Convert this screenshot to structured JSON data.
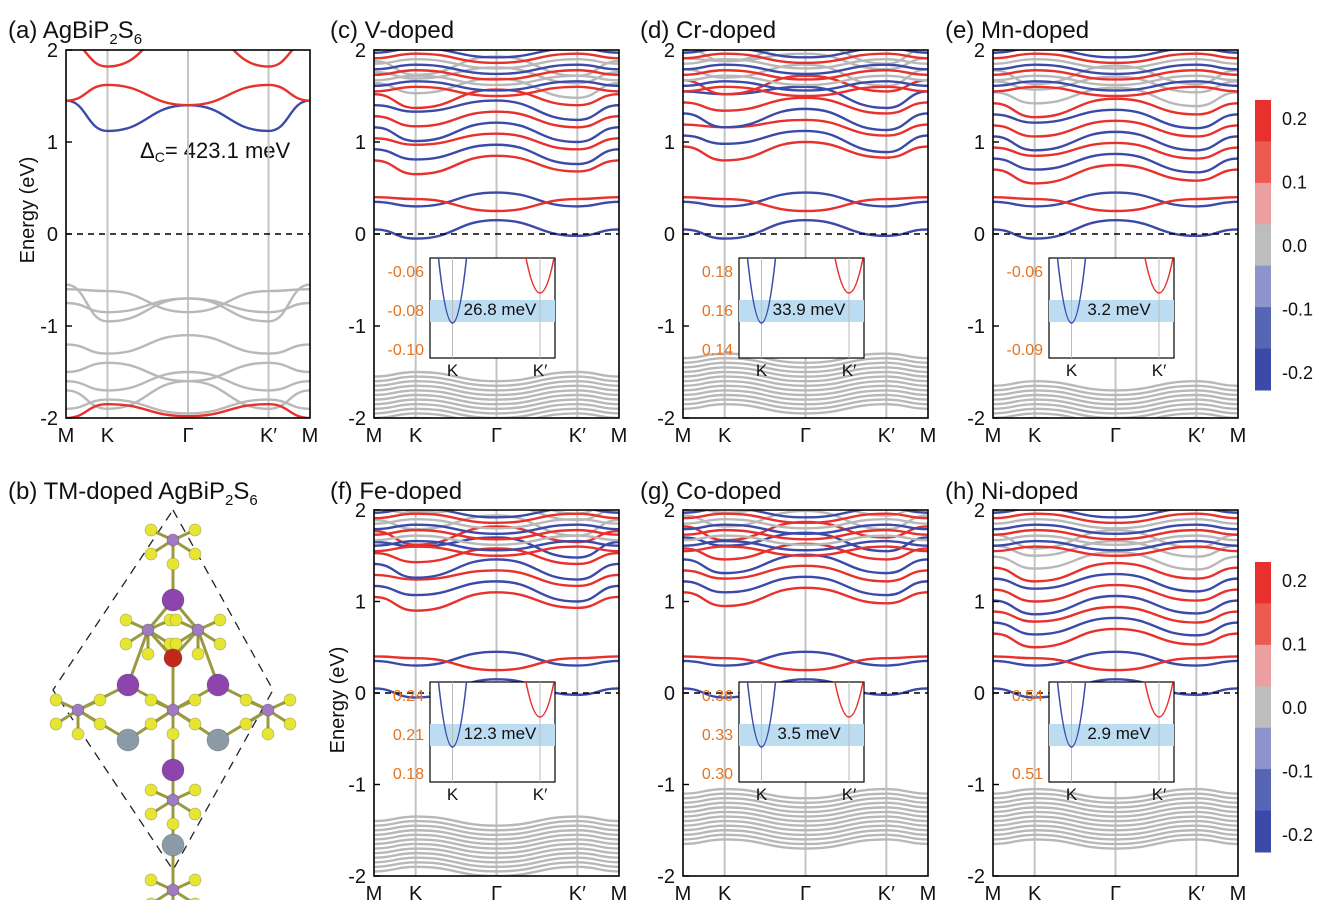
{
  "colors": {
    "up": "#e8302c",
    "down": "#3b4aa8",
    "neutral": "#b8b8b8",
    "valley_band": "#bcdcf2",
    "inset_tick": "#e5731f",
    "atom_S": "#e6e632",
    "atom_P": "#a07ac0",
    "atom_Bi": "#8e44ad",
    "atom_Ag": "#8a9aa6",
    "atom_TM": "#c0281c"
  },
  "common": {
    "x_ticks": [
      "M",
      "K",
      "Γ",
      "K′",
      "M"
    ],
    "y_ticks": [
      "-2",
      "-1",
      "0",
      "1",
      "2"
    ],
    "y_range": [
      -2,
      2
    ],
    "ylabel": "Energy (eV)"
  },
  "colorbar": {
    "ticks": [
      "0.2",
      "0.1",
      "0.0",
      "-0.1",
      "-0.2"
    ],
    "segments": [
      "#e8302c",
      "#ec5a52",
      "#eba0a0",
      "#bdbdbd",
      "#8e93cc",
      "#5665b4",
      "#3b4aa8"
    ]
  },
  "panels": [
    {
      "id": "a",
      "label": "(a)",
      "title": "AgBiP",
      "sub1": "2",
      "mid": "S",
      "sub2": "6",
      "annotation_delta": "Δ",
      "annotation_sub": "C",
      "annotation_value": "= 423.1 meV"
    },
    {
      "id": "b",
      "label": "(b)",
      "title": "TM-doped AgBiP",
      "sub1": "2",
      "mid": "S",
      "sub2": "6"
    },
    {
      "id": "c",
      "label": "(c)",
      "title": "V-doped",
      "inset": {
        "y_ticks": [
          "-0.06",
          "-0.08",
          "-0.10"
        ],
        "k_labels": [
          "K",
          "K′"
        ],
        "splitting": "26.8 meV"
      }
    },
    {
      "id": "d",
      "label": "(d)",
      "title": "Cr-doped",
      "inset": {
        "y_ticks": [
          "0.18",
          "0.16",
          "0.14"
        ],
        "k_labels": [
          "K",
          "K′"
        ],
        "splitting": "33.9 meV"
      }
    },
    {
      "id": "e",
      "label": "(e)",
      "title": "Mn-doped",
      "inset": {
        "y_ticks": [
          "-0.06",
          "-0.09"
        ],
        "k_labels": [
          "K",
          "K′"
        ],
        "splitting": "3.2 meV"
      }
    },
    {
      "id": "f",
      "label": "(f)",
      "title": "Fe-doped",
      "inset": {
        "y_ticks": [
          "0.24",
          "0.21",
          "0.18"
        ],
        "k_labels": [
          "K",
          "K′"
        ],
        "splitting": "12.3 meV"
      }
    },
    {
      "id": "g",
      "label": "(g)",
      "title": "Co-doped",
      "inset": {
        "y_ticks": [
          "0.36",
          "0.33",
          "0.30"
        ],
        "k_labels": [
          "K",
          "K′"
        ],
        "splitting": "3.5 meV"
      }
    },
    {
      "id": "h",
      "label": "(h)",
      "title": "Ni-doped",
      "inset": {
        "y_ticks": [
          "0.54",
          "0.51"
        ],
        "k_labels": [
          "K",
          "K′"
        ],
        "splitting": "2.9 meV"
      }
    }
  ]
}
